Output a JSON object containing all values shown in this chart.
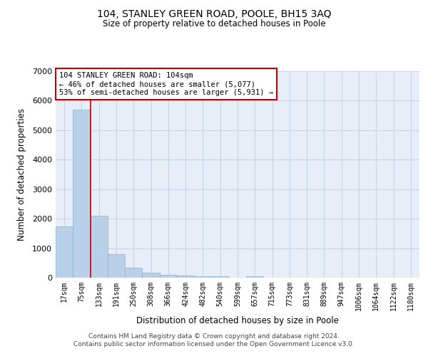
{
  "title_line1": "104, STANLEY GREEN ROAD, POOLE, BH15 3AQ",
  "title_line2": "Size of property relative to detached houses in Poole",
  "xlabel": "Distribution of detached houses by size in Poole",
  "ylabel": "Number of detached properties",
  "categories": [
    "17sqm",
    "75sqm",
    "133sqm",
    "191sqm",
    "250sqm",
    "308sqm",
    "366sqm",
    "424sqm",
    "482sqm",
    "540sqm",
    "599sqm",
    "657sqm",
    "715sqm",
    "773sqm",
    "831sqm",
    "889sqm",
    "947sqm",
    "1006sqm",
    "1064sqm",
    "1122sqm",
    "1180sqm"
  ],
  "values": [
    1750,
    5700,
    2100,
    800,
    350,
    175,
    100,
    75,
    50,
    50,
    0,
    50,
    0,
    0,
    0,
    0,
    0,
    0,
    0,
    0,
    0
  ],
  "bar_color": "#b8d0e8",
  "bar_edge_color": "#8ab0d0",
  "property_line_color": "#cc0000",
  "annotation_text": "104 STANLEY GREEN ROAD: 104sqm\n← 46% of detached houses are smaller (5,077)\n53% of semi-detached houses are larger (5,931) →",
  "annotation_box_color": "#ffffff",
  "annotation_box_edge": "#cc0000",
  "grid_color": "#c8d4e4",
  "background_color": "#e8eef8",
  "footer_line1": "Contains HM Land Registry data © Crown copyright and database right 2024.",
  "footer_line2": "Contains public sector information licensed under the Open Government Licence v3.0.",
  "ylim": [
    0,
    7000
  ],
  "yticks": [
    0,
    1000,
    2000,
    3000,
    4000,
    5000,
    6000,
    7000
  ]
}
